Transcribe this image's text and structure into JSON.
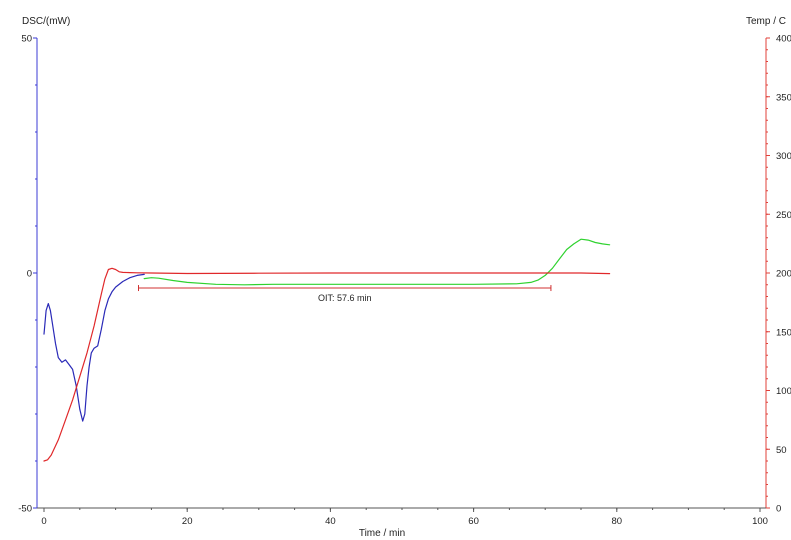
{
  "chart_data": {
    "type": "line",
    "xlabel": "Time / min",
    "ylabel_left": "DSC/(mW)",
    "ylabel_right": "Temp / C",
    "xlim": [
      0,
      100
    ],
    "ylim_left": [
      -50,
      50
    ],
    "ylim_right": [
      0,
      400
    ],
    "x_ticks": [
      0,
      20,
      40,
      60,
      80,
      100
    ],
    "y_left_ticks": [
      -50,
      0,
      50
    ],
    "y_right_ticks": [
      0,
      50,
      100,
      150,
      200,
      250,
      300,
      350,
      400
    ],
    "grid": false,
    "colors": {
      "left_axis": "#3b3bd6",
      "right_axis": "#e0403a",
      "dsc_initial": "#2a2ab8",
      "dsc_isothermal": "#2fd22f",
      "temperature": "#e0282a",
      "annotation": "#d03030"
    },
    "series": [
      {
        "axis": "left",
        "color_key": "dsc_initial",
        "x": [
          0,
          0.3,
          0.6,
          0.9,
          1.2,
          1.6,
          2.0,
          2.5,
          3.0,
          3.5,
          4.0,
          4.5,
          5.0,
          5.4,
          5.7,
          6.0,
          6.3,
          6.6,
          7.0,
          7.5,
          8.0,
          8.5,
          9.0,
          9.5,
          10.0,
          11.0,
          12.0,
          13.0,
          14.0
        ],
        "y": [
          -13,
          -8,
          -6.5,
          -8,
          -11,
          -15,
          -18,
          -19,
          -18.5,
          -19.5,
          -20.5,
          -24,
          -29,
          -31.5,
          -30,
          -24,
          -20,
          -17,
          -16,
          -15.5,
          -12,
          -8,
          -5.5,
          -4,
          -3,
          -1.8,
          -1,
          -0.5,
          -0.3
        ]
      },
      {
        "axis": "left",
        "color_key": "dsc_isothermal",
        "x": [
          14,
          15,
          16,
          18,
          20,
          24,
          28,
          32,
          40,
          50,
          60,
          66,
          68,
          69,
          70,
          71,
          72,
          73,
          74,
          75,
          76,
          77,
          78,
          79
        ],
        "y": [
          -1.2,
          -1,
          -1.1,
          -1.6,
          -2.0,
          -2.4,
          -2.5,
          -2.4,
          -2.4,
          -2.4,
          -2.4,
          -2.3,
          -2.0,
          -1.5,
          -0.5,
          1.0,
          3.0,
          5.0,
          6.2,
          7.2,
          7.0,
          6.5,
          6.2,
          6.0
        ]
      },
      {
        "axis": "right",
        "color_key": "temperature",
        "x": [
          0,
          0.5,
          1,
          2,
          3,
          4,
          5,
          6,
          7,
          8,
          8.5,
          9,
          9.5,
          10,
          10.5,
          11,
          12,
          13,
          15,
          20,
          30,
          40,
          50,
          60,
          70,
          75,
          79
        ],
        "y": [
          40,
          41,
          45,
          58,
          75,
          92,
          112,
          132,
          155,
          182,
          195,
          203,
          204,
          203,
          201,
          200.5,
          200.3,
          200.2,
          200,
          199.6,
          199.8,
          200,
          200,
          200,
          200,
          200,
          199.5
        ]
      }
    ],
    "annotation": {
      "text": "OIT:  57.6 min",
      "x_start": 13.2,
      "x_end": 70.8,
      "y": -3.2
    }
  }
}
